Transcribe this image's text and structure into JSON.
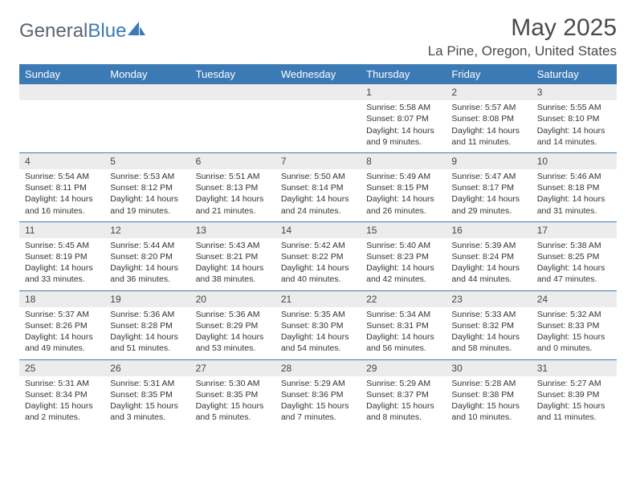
{
  "brand": {
    "part1": "General",
    "part2": "Blue"
  },
  "title": "May 2025",
  "location": "La Pine, Oregon, United States",
  "colors": {
    "header_bg": "#3c7ab5",
    "header_text": "#ffffff",
    "daynum_bg": "#ececec",
    "cell_border": "#3c7ab5",
    "text": "#333333",
    "brand_gray": "#5a6570",
    "brand_blue": "#3c7ab5"
  },
  "fonts": {
    "body": "Arial",
    "title_size": 30,
    "location_size": 17,
    "th_size": 13,
    "cell_size": 10.5
  },
  "weekdays": [
    "Sunday",
    "Monday",
    "Tuesday",
    "Wednesday",
    "Thursday",
    "Friday",
    "Saturday"
  ],
  "weeks": [
    [
      null,
      null,
      null,
      null,
      {
        "d": "1",
        "sr": "5:58 AM",
        "ss": "8:07 PM",
        "dl": "14 hours and 9 minutes."
      },
      {
        "d": "2",
        "sr": "5:57 AM",
        "ss": "8:08 PM",
        "dl": "14 hours and 11 minutes."
      },
      {
        "d": "3",
        "sr": "5:55 AM",
        "ss": "8:10 PM",
        "dl": "14 hours and 14 minutes."
      }
    ],
    [
      {
        "d": "4",
        "sr": "5:54 AM",
        "ss": "8:11 PM",
        "dl": "14 hours and 16 minutes."
      },
      {
        "d": "5",
        "sr": "5:53 AM",
        "ss": "8:12 PM",
        "dl": "14 hours and 19 minutes."
      },
      {
        "d": "6",
        "sr": "5:51 AM",
        "ss": "8:13 PM",
        "dl": "14 hours and 21 minutes."
      },
      {
        "d": "7",
        "sr": "5:50 AM",
        "ss": "8:14 PM",
        "dl": "14 hours and 24 minutes."
      },
      {
        "d": "8",
        "sr": "5:49 AM",
        "ss": "8:15 PM",
        "dl": "14 hours and 26 minutes."
      },
      {
        "d": "9",
        "sr": "5:47 AM",
        "ss": "8:17 PM",
        "dl": "14 hours and 29 minutes."
      },
      {
        "d": "10",
        "sr": "5:46 AM",
        "ss": "8:18 PM",
        "dl": "14 hours and 31 minutes."
      }
    ],
    [
      {
        "d": "11",
        "sr": "5:45 AM",
        "ss": "8:19 PM",
        "dl": "14 hours and 33 minutes."
      },
      {
        "d": "12",
        "sr": "5:44 AM",
        "ss": "8:20 PM",
        "dl": "14 hours and 36 minutes."
      },
      {
        "d": "13",
        "sr": "5:43 AM",
        "ss": "8:21 PM",
        "dl": "14 hours and 38 minutes."
      },
      {
        "d": "14",
        "sr": "5:42 AM",
        "ss": "8:22 PM",
        "dl": "14 hours and 40 minutes."
      },
      {
        "d": "15",
        "sr": "5:40 AM",
        "ss": "8:23 PM",
        "dl": "14 hours and 42 minutes."
      },
      {
        "d": "16",
        "sr": "5:39 AM",
        "ss": "8:24 PM",
        "dl": "14 hours and 44 minutes."
      },
      {
        "d": "17",
        "sr": "5:38 AM",
        "ss": "8:25 PM",
        "dl": "14 hours and 47 minutes."
      }
    ],
    [
      {
        "d": "18",
        "sr": "5:37 AM",
        "ss": "8:26 PM",
        "dl": "14 hours and 49 minutes."
      },
      {
        "d": "19",
        "sr": "5:36 AM",
        "ss": "8:28 PM",
        "dl": "14 hours and 51 minutes."
      },
      {
        "d": "20",
        "sr": "5:36 AM",
        "ss": "8:29 PM",
        "dl": "14 hours and 53 minutes."
      },
      {
        "d": "21",
        "sr": "5:35 AM",
        "ss": "8:30 PM",
        "dl": "14 hours and 54 minutes."
      },
      {
        "d": "22",
        "sr": "5:34 AM",
        "ss": "8:31 PM",
        "dl": "14 hours and 56 minutes."
      },
      {
        "d": "23",
        "sr": "5:33 AM",
        "ss": "8:32 PM",
        "dl": "14 hours and 58 minutes."
      },
      {
        "d": "24",
        "sr": "5:32 AM",
        "ss": "8:33 PM",
        "dl": "15 hours and 0 minutes."
      }
    ],
    [
      {
        "d": "25",
        "sr": "5:31 AM",
        "ss": "8:34 PM",
        "dl": "15 hours and 2 minutes."
      },
      {
        "d": "26",
        "sr": "5:31 AM",
        "ss": "8:35 PM",
        "dl": "15 hours and 3 minutes."
      },
      {
        "d": "27",
        "sr": "5:30 AM",
        "ss": "8:35 PM",
        "dl": "15 hours and 5 minutes."
      },
      {
        "d": "28",
        "sr": "5:29 AM",
        "ss": "8:36 PM",
        "dl": "15 hours and 7 minutes."
      },
      {
        "d": "29",
        "sr": "5:29 AM",
        "ss": "8:37 PM",
        "dl": "15 hours and 8 minutes."
      },
      {
        "d": "30",
        "sr": "5:28 AM",
        "ss": "8:38 PM",
        "dl": "15 hours and 10 minutes."
      },
      {
        "d": "31",
        "sr": "5:27 AM",
        "ss": "8:39 PM",
        "dl": "15 hours and 11 minutes."
      }
    ]
  ],
  "labels": {
    "sunrise": "Sunrise: ",
    "sunset": "Sunset: ",
    "daylight": "Daylight: "
  }
}
